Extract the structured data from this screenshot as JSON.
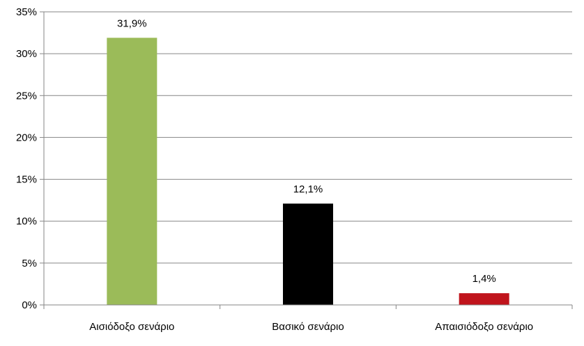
{
  "chart_data": {
    "type": "bar",
    "categories": [
      "Αισιόδοξο  σενάριο",
      "Βασικό σενάριο",
      "Απαισιόδοξο σενάριο"
    ],
    "values": [
      31.9,
      12.1,
      1.4
    ],
    "data_labels": [
      "31,9%",
      "12,1%",
      "1,4%"
    ],
    "bar_colors": [
      "#9BBB59",
      "#000000",
      "#C0141C"
    ],
    "ylim": [
      0,
      35
    ],
    "yticks": [
      0,
      5,
      10,
      15,
      20,
      25,
      30,
      35
    ],
    "ytick_labels": [
      "0%",
      "5%",
      "10%",
      "15%",
      "20%",
      "25%",
      "30%",
      "35%"
    ],
    "grid": true,
    "gridline_color": "#868686",
    "title": "",
    "xlabel": "",
    "ylabel": ""
  }
}
